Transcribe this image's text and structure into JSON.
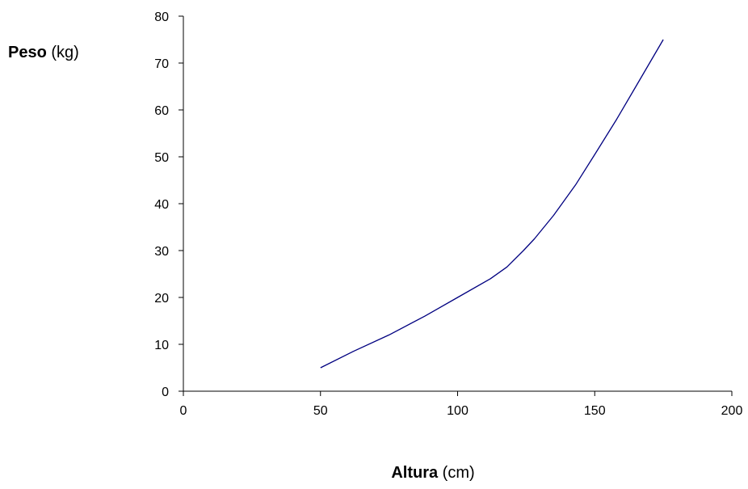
{
  "chart_data": {
    "type": "line",
    "xlabel": {
      "bold": "Altura",
      "unit": " (cm)"
    },
    "ylabel": {
      "bold": "Peso",
      "unit": " (kg)"
    },
    "xlim": [
      0,
      200
    ],
    "ylim": [
      0,
      80
    ],
    "x_ticks": [
      "0",
      "50",
      "100",
      "150",
      "200"
    ],
    "y_ticks": [
      "0",
      "10",
      "20",
      "30",
      "40",
      "50",
      "60",
      "70",
      "80"
    ],
    "grid": false,
    "legend": "none",
    "line_color": "#000080",
    "series": [
      {
        "x": [
          50,
          62,
          75,
          88,
          100,
          112,
          118,
          124,
          128,
          135,
          143,
          150,
          158,
          165,
          175
        ],
        "y": [
          5,
          8.5,
          12,
          16,
          20,
          24,
          26.5,
          30,
          32.5,
          37.5,
          44,
          50.5,
          58,
          65,
          75
        ]
      }
    ]
  }
}
